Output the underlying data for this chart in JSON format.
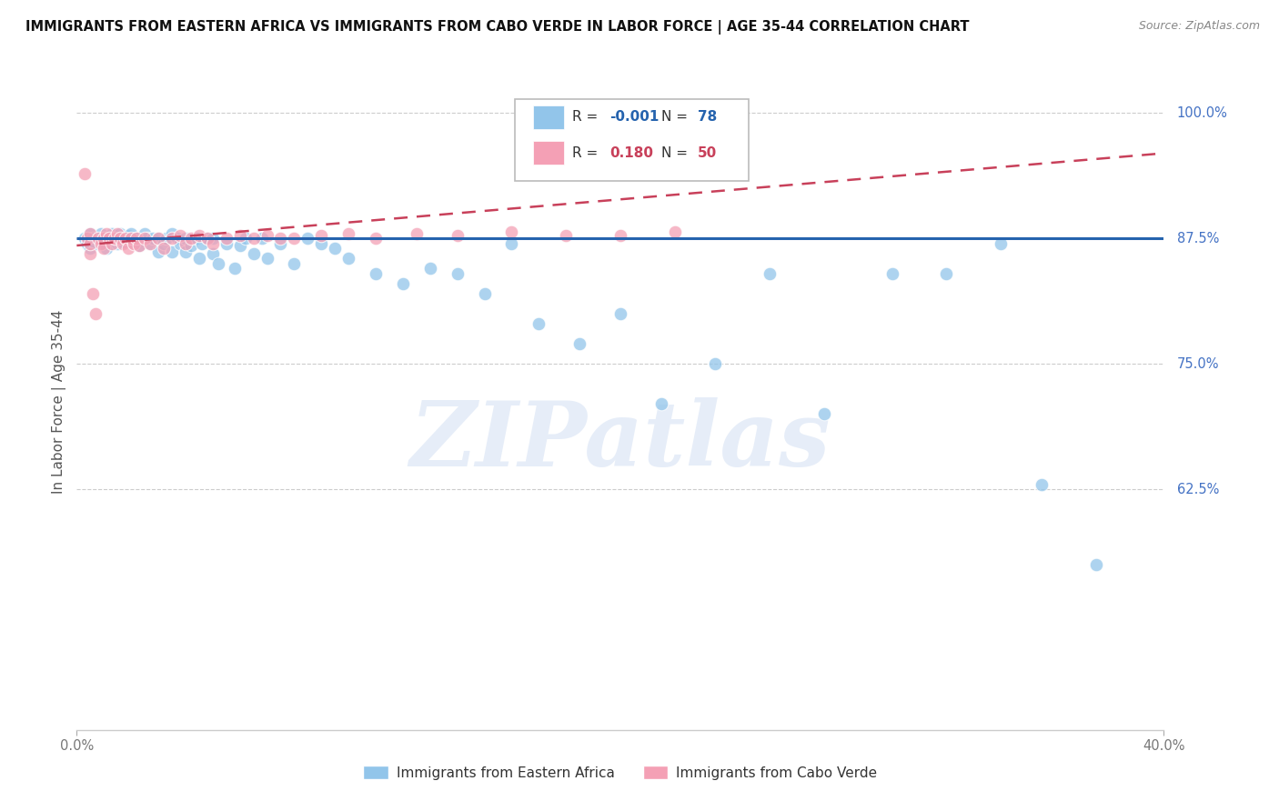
{
  "title": "IMMIGRANTS FROM EASTERN AFRICA VS IMMIGRANTS FROM CABO VERDE IN LABOR FORCE | AGE 35-44 CORRELATION CHART",
  "source": "Source: ZipAtlas.com",
  "ylabel": "In Labor Force | Age 35-44",
  "blue_label": "Immigrants from Eastern Africa",
  "pink_label": "Immigrants from Cabo Verde",
  "blue_R": -0.001,
  "blue_N": 78,
  "pink_R": 0.18,
  "pink_N": 50,
  "xlim": [
    0.0,
    0.4
  ],
  "ylim": [
    0.385,
    1.04
  ],
  "yticks": [
    0.625,
    0.75,
    0.875,
    1.0
  ],
  "ytick_labels": [
    "62.5%",
    "75.0%",
    "87.5%",
    "100.0%"
  ],
  "blue_color": "#92C5EA",
  "pink_color": "#F4A0B5",
  "blue_line_color": "#2563AE",
  "pink_line_color": "#C8405A",
  "watermark": "ZIPatlas",
  "blue_x": [
    0.003,
    0.004,
    0.005,
    0.005,
    0.006,
    0.007,
    0.008,
    0.009,
    0.01,
    0.01,
    0.011,
    0.012,
    0.013,
    0.014,
    0.015,
    0.015,
    0.016,
    0.017,
    0.018,
    0.019,
    0.02,
    0.02,
    0.021,
    0.022,
    0.023,
    0.025,
    0.026,
    0.027,
    0.028,
    0.03,
    0.03,
    0.032,
    0.033,
    0.035,
    0.035,
    0.037,
    0.038,
    0.04,
    0.04,
    0.042,
    0.044,
    0.045,
    0.046,
    0.048,
    0.05,
    0.05,
    0.052,
    0.055,
    0.058,
    0.06,
    0.062,
    0.065,
    0.068,
    0.07,
    0.075,
    0.08,
    0.085,
    0.09,
    0.095,
    0.1,
    0.11,
    0.12,
    0.13,
    0.14,
    0.15,
    0.16,
    0.17,
    0.185,
    0.2,
    0.215,
    0.235,
    0.255,
    0.275,
    0.3,
    0.32,
    0.34,
    0.355,
    0.375
  ],
  "blue_y": [
    0.875,
    0.87,
    0.865,
    0.88,
    0.875,
    0.87,
    0.875,
    0.88,
    0.875,
    0.87,
    0.865,
    0.875,
    0.88,
    0.875,
    0.87,
    0.875,
    0.88,
    0.872,
    0.875,
    0.878,
    0.875,
    0.88,
    0.872,
    0.875,
    0.868,
    0.88,
    0.875,
    0.87,
    0.875,
    0.862,
    0.875,
    0.87,
    0.875,
    0.88,
    0.862,
    0.875,
    0.87,
    0.875,
    0.862,
    0.868,
    0.875,
    0.855,
    0.87,
    0.875,
    0.86,
    0.875,
    0.85,
    0.87,
    0.845,
    0.868,
    0.875,
    0.86,
    0.875,
    0.855,
    0.87,
    0.85,
    0.875,
    0.87,
    0.865,
    0.855,
    0.84,
    0.83,
    0.845,
    0.84,
    0.82,
    0.87,
    0.79,
    0.77,
    0.8,
    0.71,
    0.75,
    0.84,
    0.7,
    0.84,
    0.84,
    0.87,
    0.63,
    0.55
  ],
  "pink_x": [
    0.003,
    0.004,
    0.005,
    0.005,
    0.005,
    0.006,
    0.007,
    0.008,
    0.009,
    0.01,
    0.01,
    0.011,
    0.012,
    0.013,
    0.014,
    0.015,
    0.016,
    0.017,
    0.018,
    0.019,
    0.02,
    0.021,
    0.022,
    0.023,
    0.025,
    0.027,
    0.03,
    0.032,
    0.035,
    0.038,
    0.04,
    0.042,
    0.045,
    0.048,
    0.05,
    0.055,
    0.06,
    0.065,
    0.07,
    0.075,
    0.08,
    0.09,
    0.1,
    0.11,
    0.125,
    0.14,
    0.16,
    0.18,
    0.2,
    0.22
  ],
  "pink_y": [
    0.94,
    0.875,
    0.86,
    0.87,
    0.88,
    0.82,
    0.8,
    0.875,
    0.87,
    0.875,
    0.865,
    0.88,
    0.875,
    0.87,
    0.875,
    0.88,
    0.875,
    0.87,
    0.875,
    0.865,
    0.875,
    0.87,
    0.875,
    0.868,
    0.875,
    0.87,
    0.875,
    0.865,
    0.875,
    0.878,
    0.87,
    0.875,
    0.878,
    0.875,
    0.87,
    0.875,
    0.878,
    0.875,
    0.878,
    0.875,
    0.875,
    0.878,
    0.88,
    0.875,
    0.88,
    0.878,
    0.882,
    0.878,
    0.878,
    0.882
  ],
  "blue_trend_x": [
    0.0,
    0.4
  ],
  "blue_trend_y": [
    0.875,
    0.875
  ],
  "pink_trend_x": [
    0.0,
    0.4
  ],
  "pink_trend_y": [
    0.868,
    0.96
  ]
}
